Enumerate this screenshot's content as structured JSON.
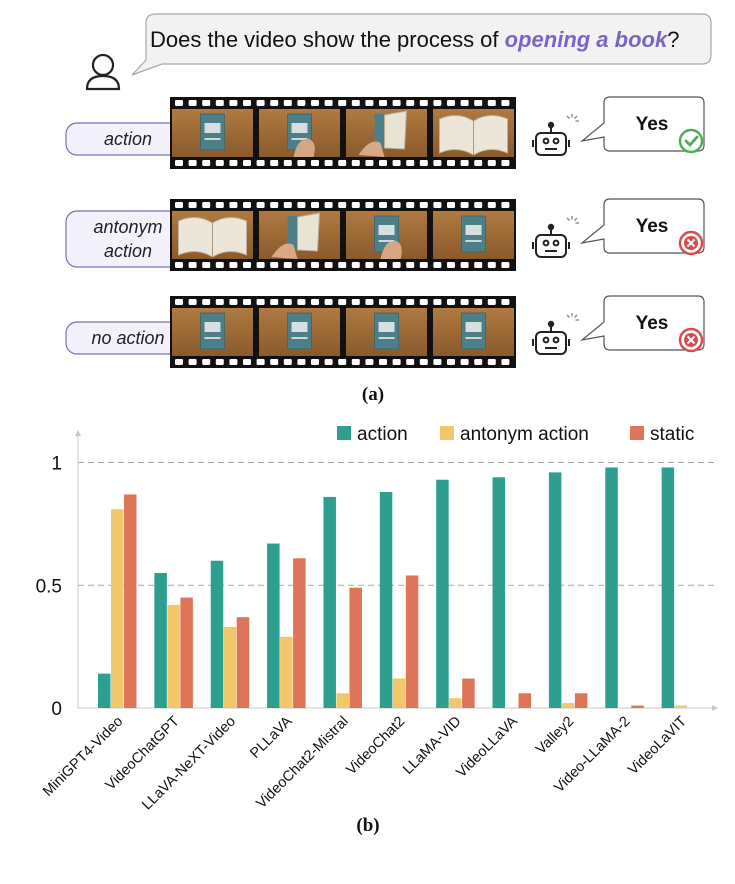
{
  "question": {
    "prefix": "Does the video show the process of ",
    "highlight": "opening a book",
    "suffix": "?"
  },
  "rows": [
    {
      "label": [
        "action"
      ],
      "answer": "Yes",
      "verdict": "correct",
      "frames": [
        "closed",
        "hand",
        "opening",
        "open"
      ]
    },
    {
      "label": [
        "antonym",
        "action"
      ],
      "answer": "Yes",
      "verdict": "wrong",
      "frames": [
        "open",
        "opening",
        "hand",
        "closed"
      ]
    },
    {
      "label": [
        "no action"
      ],
      "answer": "Yes",
      "verdict": "wrong",
      "frames": [
        "closed",
        "closed",
        "closed",
        "closed"
      ]
    }
  ],
  "captions": {
    "a": "(a)",
    "b": "(b)"
  },
  "colors": {
    "action": "#2e9e8f",
    "antonym": "#f0c86a",
    "static": "#de7458",
    "highlight": "#7b65c4",
    "bubble_border": "#7a6fc0",
    "check": "#4caf50",
    "cross": "#d94a4a"
  },
  "chart_data": {
    "type": "bar",
    "categories": [
      "MiniGPT4-Video",
      "VideoChatGPT",
      "LLaVA-NeXT-Video",
      "PLLaVA",
      "VideoChat2-Mistral",
      "VideoChat2",
      "LLaMA-VID",
      "VideoLLaVA",
      "Valley2",
      "Video-LLaMA-2",
      "VideoLaVIT"
    ],
    "series": [
      {
        "name": "action",
        "values": [
          0.14,
          0.55,
          0.6,
          0.67,
          0.86,
          0.88,
          0.93,
          0.94,
          0.96,
          0.98,
          0.98
        ]
      },
      {
        "name": "antonym action",
        "values": [
          0.81,
          0.42,
          0.33,
          0.29,
          0.06,
          0.12,
          0.04,
          0.0,
          0.02,
          0.0,
          0.01
        ]
      },
      {
        "name": "static",
        "values": [
          0.87,
          0.45,
          0.37,
          0.61,
          0.49,
          0.54,
          0.12,
          0.06,
          0.06,
          0.01,
          0.0
        ]
      }
    ],
    "yticks": [
      "0",
      "0.5",
      "1"
    ],
    "ylim": [
      0,
      1.1
    ],
    "xlabel": "",
    "ylabel": "",
    "legend_position": "top-right"
  }
}
